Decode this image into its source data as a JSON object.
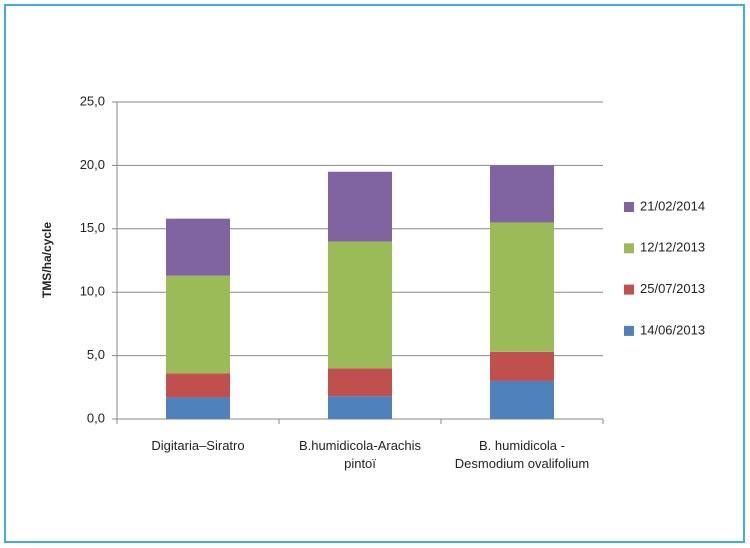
{
  "chart_data": {
    "type": "bar",
    "stacked": true,
    "y_label": "TMS/ha/cycle",
    "categories": [
      "Digitaria–Siratro",
      "B.humidicola-Arachis pintoï",
      "B. humidicola - Desmodium ovalifolium"
    ],
    "series": [
      {
        "name": "14/06/2013",
        "color": "#4f81bd",
        "values": [
          1.7,
          1.8,
          3.0
        ]
      },
      {
        "name": "25/07/2013",
        "color": "#c0504d",
        "values": [
          1.9,
          2.2,
          2.3
        ]
      },
      {
        "name": "12/12/2013",
        "color": "#9bbb59",
        "values": [
          7.7,
          10.0,
          10.2
        ]
      },
      {
        "name": "21/02/2014",
        "color": "#8064a2",
        "values": [
          4.5,
          5.5,
          4.5
        ]
      }
    ],
    "ylim": [
      0,
      25
    ],
    "yticks": [
      {
        "value": 0,
        "label": "0,0"
      },
      {
        "value": 5,
        "label": "5,0"
      },
      {
        "value": 10,
        "label": "10,0"
      },
      {
        "value": 15,
        "label": "15,0"
      },
      {
        "value": 20,
        "label": "20,0"
      },
      {
        "value": 25,
        "label": "25,0"
      }
    ],
    "grid": true,
    "legend": "right"
  }
}
